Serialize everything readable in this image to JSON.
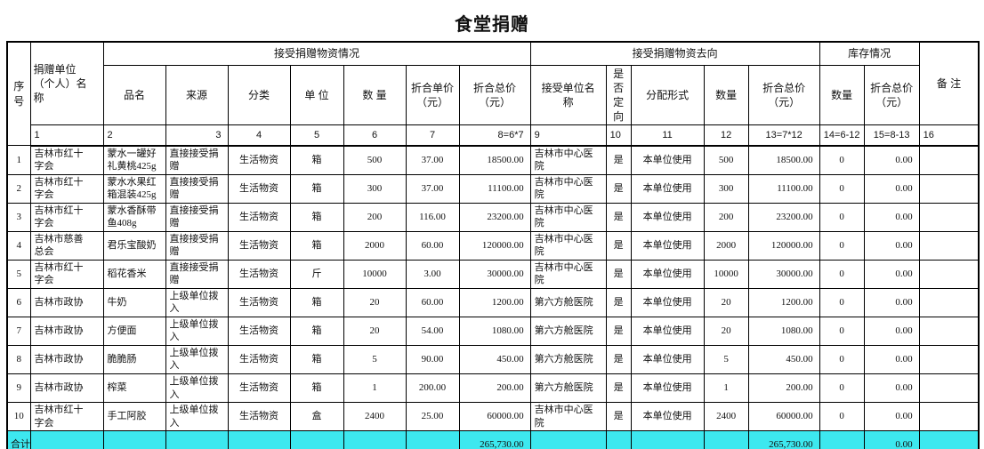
{
  "title": "食堂捐赠",
  "colors": {
    "total_row_bg": "#3DE8EF",
    "border": "#000000",
    "text": "#111111",
    "page_bg": "#FFFFFF"
  },
  "table": {
    "group_headers": {
      "receive": "接受捐赠物资情况",
      "destination": "接受捐赠物资去向",
      "inventory": "库存情况"
    },
    "column_headers": {
      "seq": "序号",
      "donor": "捐赠单位\n（个人）名\n称",
      "item": "品名",
      "source": "来源",
      "category": "分类",
      "unit": "单 位",
      "quantity": "数 量",
      "unit_price": "折合单价\n（元）",
      "total_price": "折合总价\n（元）",
      "receiver": "接受单位名\n称",
      "directed": "是\n否\n定\n向",
      "allocation": "分配形式",
      "quantity_out": "数量",
      "total_price_out": "折合总价\n（元）",
      "quantity_stock": "数量",
      "total_price_stock": "折合总价\n（元）",
      "remark": "备 注"
    },
    "numbering_row": [
      "1",
      "2",
      "3",
      "4",
      "5",
      "6",
      "7",
      "8=6*7",
      "9",
      "10",
      "11",
      "12",
      "13=7*12",
      "14=6-12",
      "15=8-13",
      "16"
    ],
    "rows": [
      [
        "1",
        "吉林市红十\n字会",
        "蒙水一罐好\n礼黄桃425g",
        "直接接受捐\n赠",
        "生活物资",
        "箱",
        "500",
        "37.00",
        "18500.00",
        "吉林市中心医\n院",
        "是",
        "本单位使用",
        "500",
        "18500.00",
        "0",
        "0.00",
        ""
      ],
      [
        "2",
        "吉林市红十\n字会",
        "蒙水水果红\n箱混装425g",
        "直接接受捐\n赠",
        "生活物资",
        "箱",
        "300",
        "37.00",
        "11100.00",
        "吉林市中心医\n院",
        "是",
        "本单位使用",
        "300",
        "11100.00",
        "0",
        "0.00",
        ""
      ],
      [
        "3",
        "吉林市红十\n字会",
        "蒙水香酥带\n鱼408g",
        "直接接受捐\n赠",
        "生活物资",
        "箱",
        "200",
        "116.00",
        "23200.00",
        "吉林市中心医\n院",
        "是",
        "本单位使用",
        "200",
        "23200.00",
        "0",
        "0.00",
        ""
      ],
      [
        "4",
        "吉林市慈善\n总会",
        "君乐宝酸奶",
        "直接接受捐\n赠",
        "生活物资",
        "箱",
        "2000",
        "60.00",
        "120000.00",
        "吉林市中心医\n院",
        "是",
        "本单位使用",
        "2000",
        "120000.00",
        "0",
        "0.00",
        ""
      ],
      [
        "5",
        "吉林市红十\n字会",
        "稻花香米",
        "直接接受捐\n赠",
        "生活物资",
        "斤",
        "10000",
        "3.00",
        "30000.00",
        "吉林市中心医\n院",
        "是",
        "本单位使用",
        "10000",
        "30000.00",
        "0",
        "0.00",
        ""
      ],
      [
        "6",
        "吉林市政协",
        "牛奶",
        "上级单位拨\n入",
        "生活物资",
        "箱",
        "20",
        "60.00",
        "1200.00",
        "第六方舱医院",
        "是",
        "本单位使用",
        "20",
        "1200.00",
        "0",
        "0.00",
        ""
      ],
      [
        "7",
        "吉林市政协",
        "方便面",
        "上级单位拨\n入",
        "生活物资",
        "箱",
        "20",
        "54.00",
        "1080.00",
        "第六方舱医院",
        "是",
        "本单位使用",
        "20",
        "1080.00",
        "0",
        "0.00",
        ""
      ],
      [
        "8",
        "吉林市政协",
        "脆脆肠",
        "上级单位拨\n入",
        "生活物资",
        "箱",
        "5",
        "90.00",
        "450.00",
        "第六方舱医院",
        "是",
        "本单位使用",
        "5",
        "450.00",
        "0",
        "0.00",
        ""
      ],
      [
        "9",
        "吉林市政协",
        "榨菜",
        "上级单位拨\n入",
        "生活物资",
        "箱",
        "1",
        "200.00",
        "200.00",
        "第六方舱医院",
        "是",
        "本单位使用",
        "1",
        "200.00",
        "0",
        "0.00",
        ""
      ],
      [
        "10",
        "吉林市红十\n字会",
        "手工阿胶",
        "上级单位拨\n入",
        "生活物资",
        "盒",
        "2400",
        "25.00",
        "60000.00",
        "吉林市中心医\n院",
        "是",
        "本单位使用",
        "2400",
        "60000.00",
        "0",
        "0.00",
        ""
      ]
    ],
    "total_row": [
      "合计",
      "",
      "",
      "",
      "",
      "",
      "",
      "",
      "265,730.00",
      "",
      "",
      "",
      "",
      "265,730.00",
      "",
      "0.00",
      ""
    ]
  }
}
